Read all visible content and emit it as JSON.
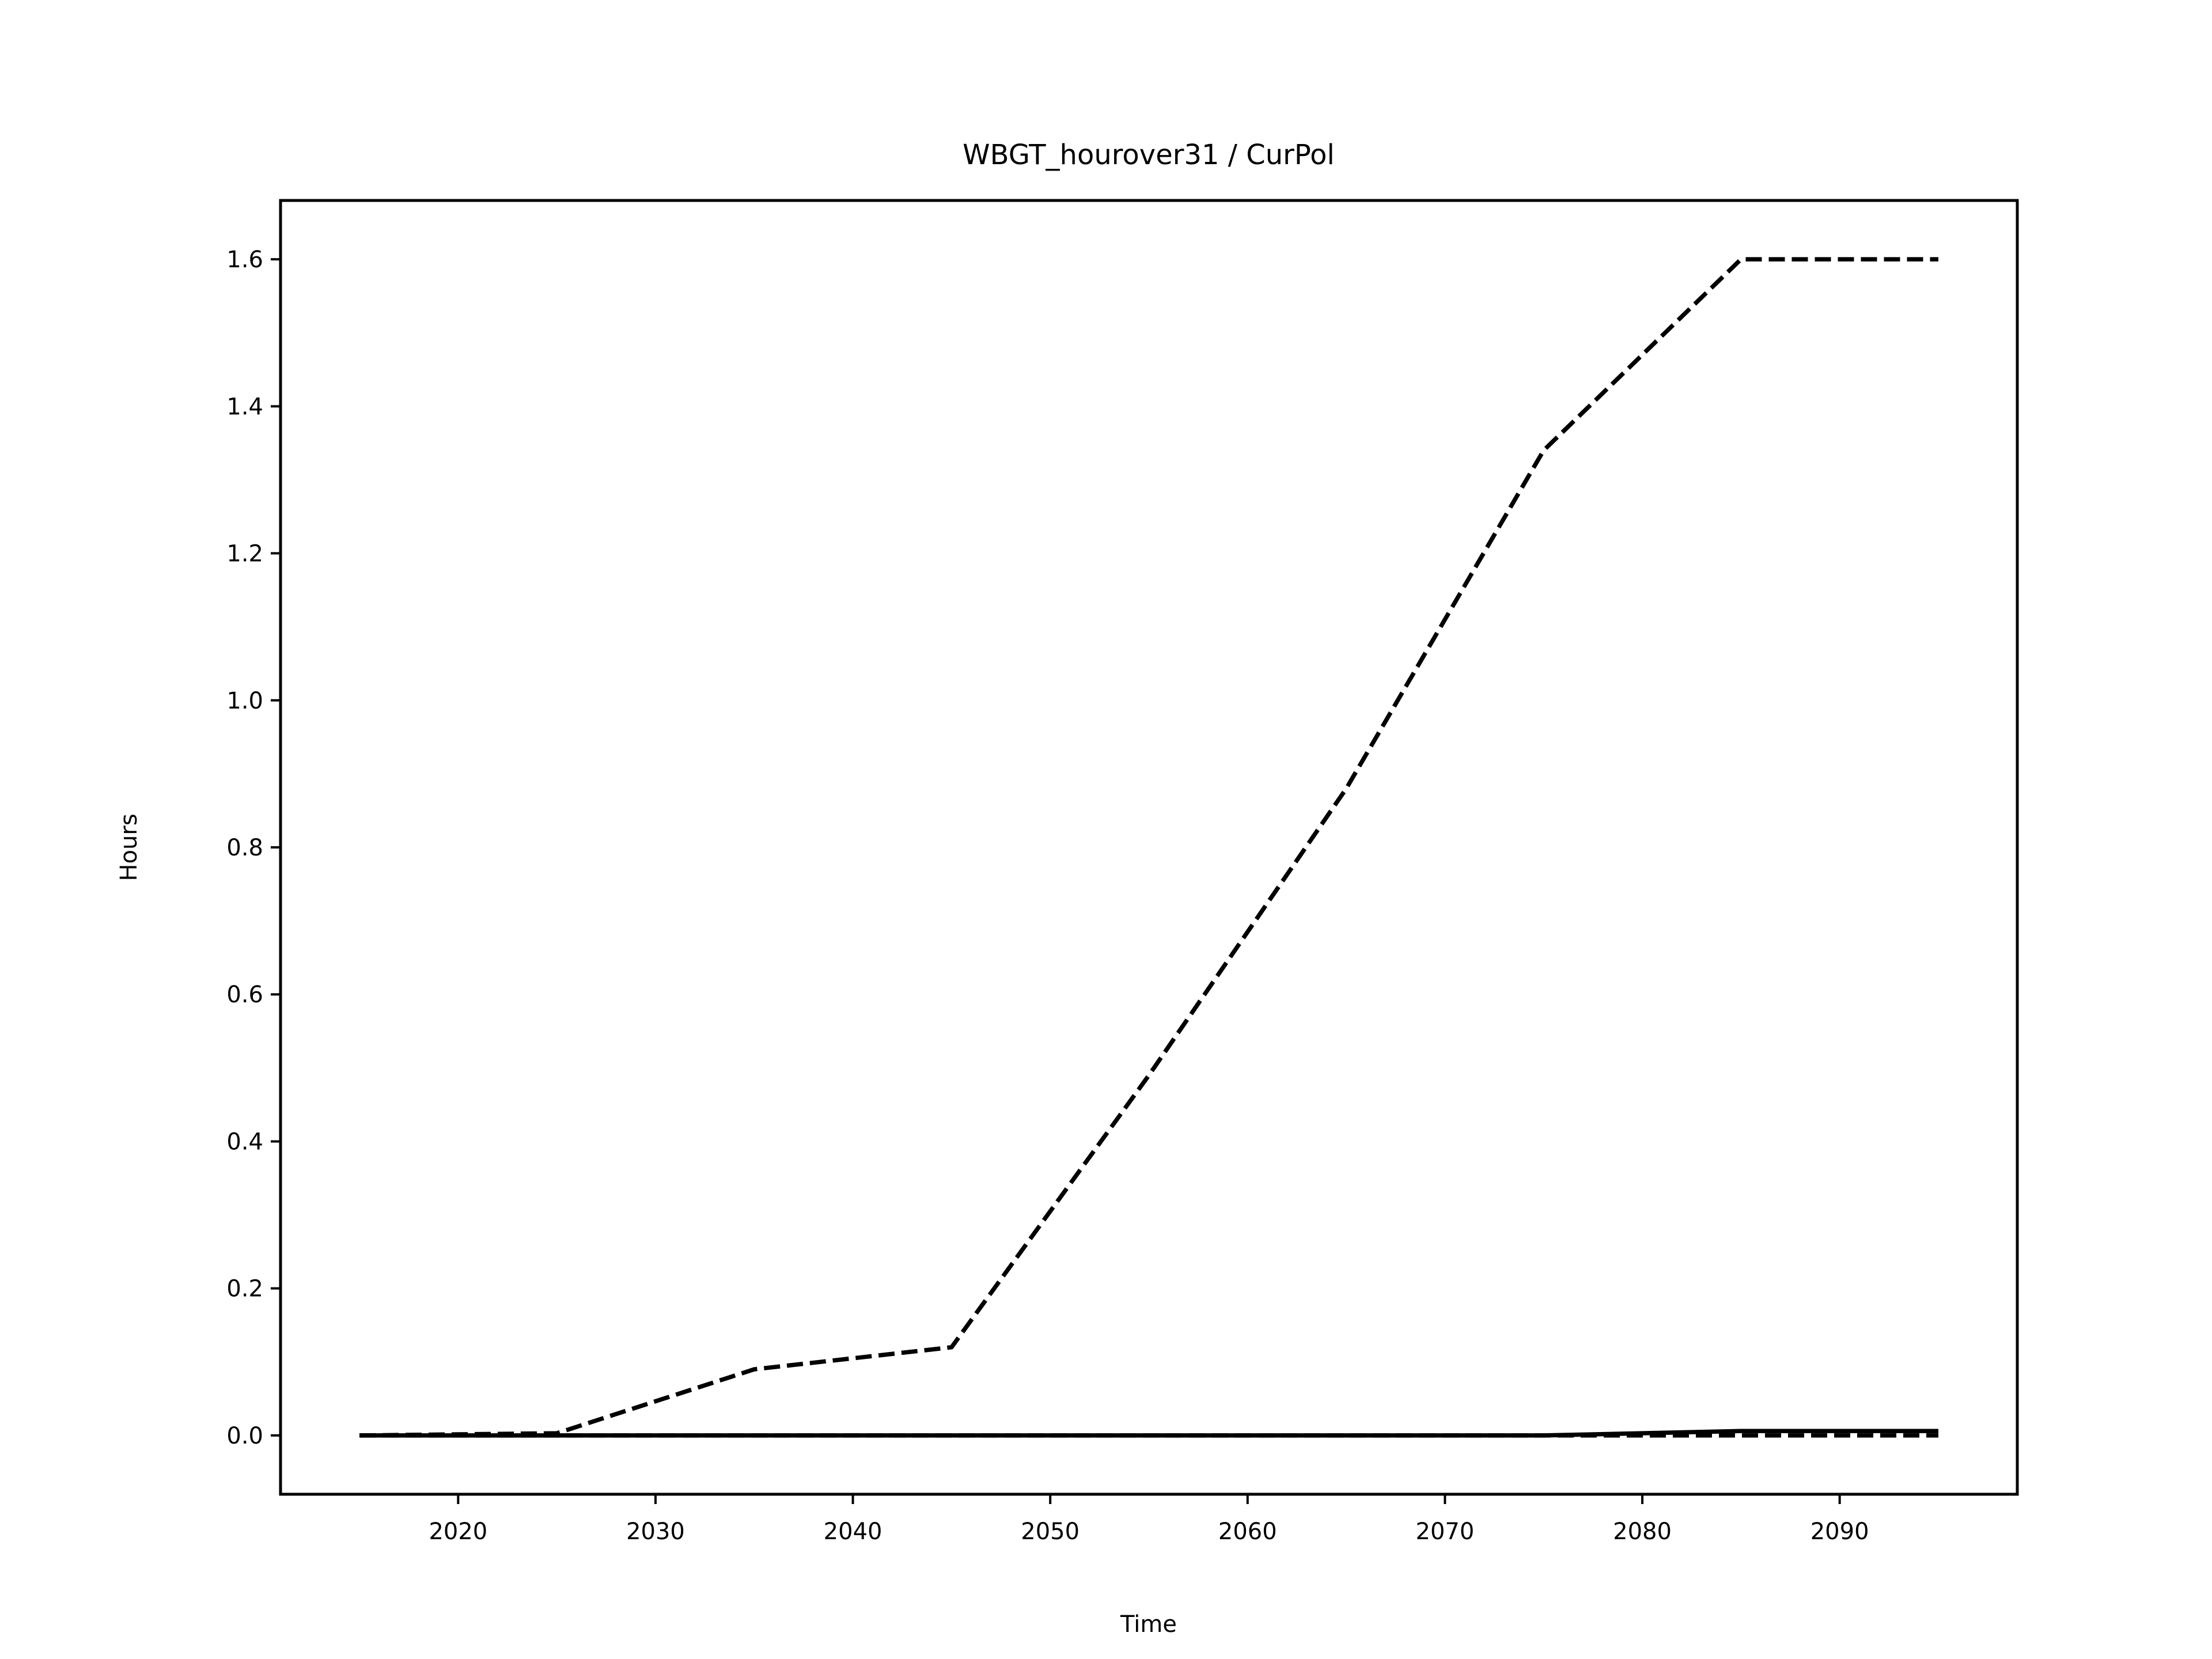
{
  "chart_data": {
    "type": "line",
    "title": "WBGT_hourover31 / CurPol",
    "xlabel": "Time",
    "ylabel": "Hours",
    "xlim": [
      2011,
      2099
    ],
    "ylim": [
      -0.08,
      1.68
    ],
    "xticks": [
      2020,
      2030,
      2040,
      2050,
      2060,
      2070,
      2080,
      2090
    ],
    "yticks": [
      0.0,
      0.2,
      0.4,
      0.6,
      0.8,
      1.0,
      1.2,
      1.4,
      1.6
    ],
    "ytick_labels": [
      "0.0",
      "0.2",
      "0.4",
      "0.6",
      "0.8",
      "1.0",
      "1.2",
      "1.4",
      "1.6"
    ],
    "grid": false,
    "color": "#000000",
    "series": [
      {
        "style": "dashed",
        "x": [
          2015,
          2025,
          2035,
          2045,
          2055,
          2065,
          2075,
          2085,
          2095
        ],
        "y": [
          0.0,
          0.003,
          0.09,
          0.12,
          0.49,
          0.88,
          1.34,
          1.6,
          1.6
        ]
      },
      {
        "style": "solid",
        "x": [
          2015,
          2025,
          2035,
          2045,
          2055,
          2065,
          2075,
          2085,
          2095
        ],
        "y": [
          0.0,
          0.0,
          0.0,
          0.0,
          0.0,
          0.0,
          0.0,
          0.006,
          0.006
        ]
      },
      {
        "style": "dashed",
        "x": [
          2015,
          2025,
          2035,
          2045,
          2055,
          2065,
          2075,
          2085,
          2095
        ],
        "y": [
          0.0,
          0.0,
          0.0,
          0.0,
          0.0,
          0.0,
          0.0,
          0.0,
          0.0
        ]
      }
    ]
  }
}
